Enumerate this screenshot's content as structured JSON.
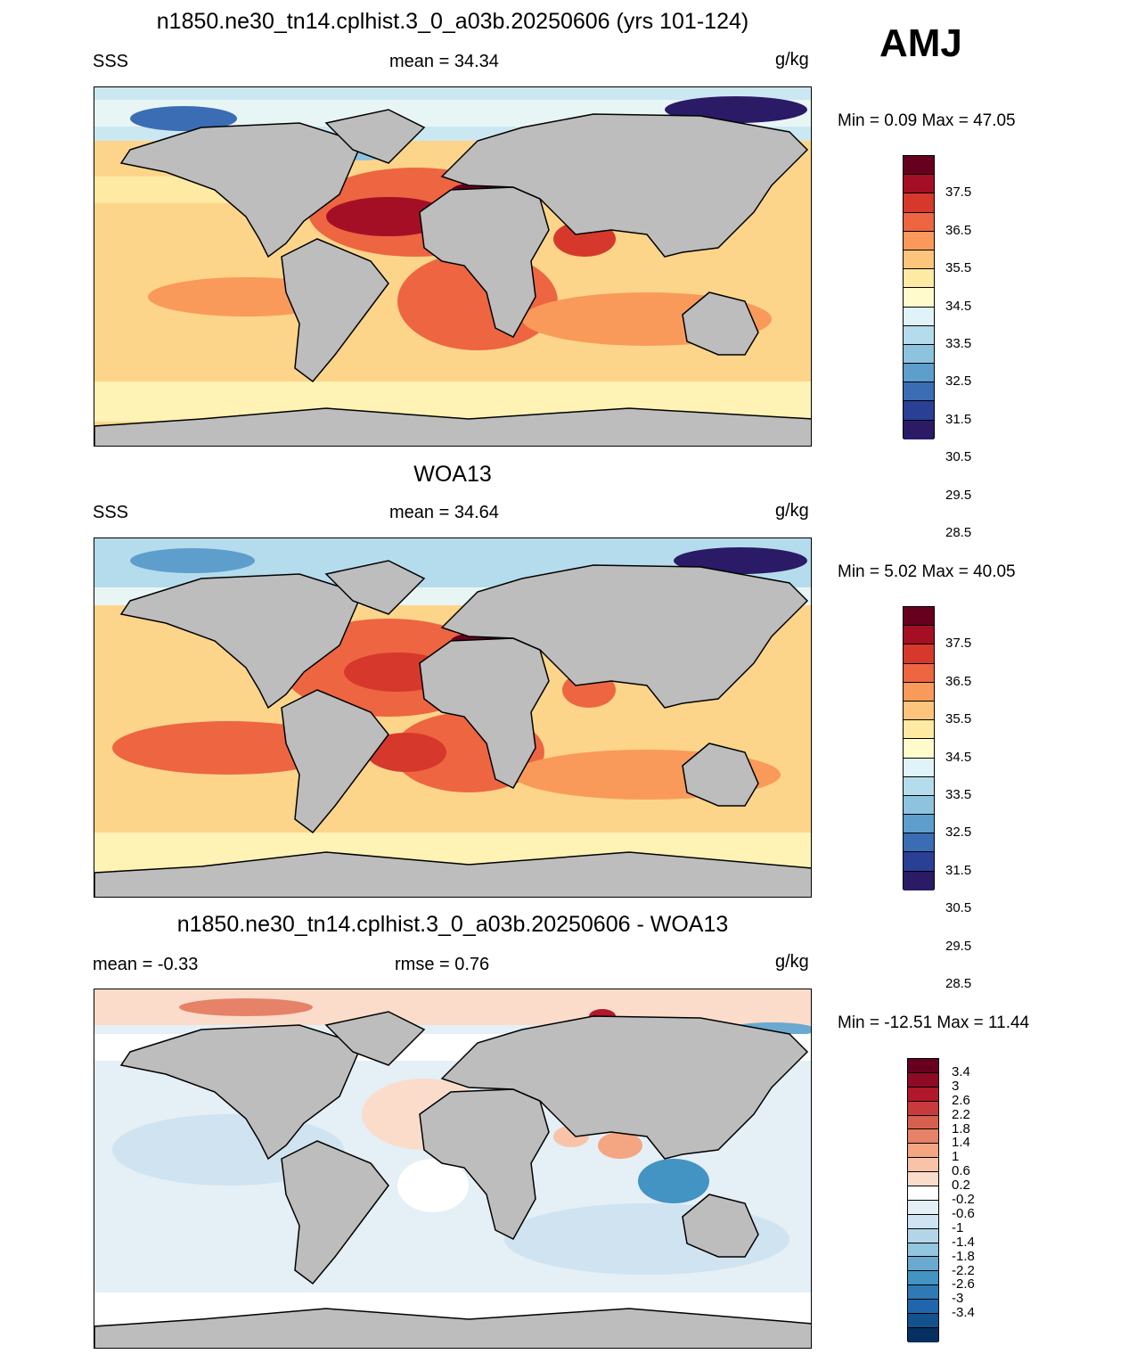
{
  "season": "AMJ",
  "units": "g/kg",
  "land_color": "#bdbdbd",
  "panels": [
    {
      "title": "n1850.ne30_tn14.cplhist.3_0_a03b.20250606 (yrs 101-124)",
      "left_label": "SSS",
      "center_label": "mean =  34.34",
      "units": "g/kg",
      "minmax": "Min =   0.09 Max =  47.05"
    },
    {
      "title": "WOA13",
      "left_label": "SSS",
      "center_label": "mean =  34.64",
      "units": "g/kg",
      "minmax": "Min =   5.02 Max =  40.05"
    },
    {
      "title": "n1850.ne30_tn14.cplhist.3_0_a03b.20250606 - WOA13",
      "left_label": "mean =  -0.33",
      "center_label": "rmse =   0.76",
      "units": "g/kg",
      "minmax": "Min = -12.51 Max =  11.44"
    }
  ],
  "sss_colorbar": {
    "labels": [
      "37.5",
      "36.5",
      "35.5",
      "34.5",
      "33.5",
      "32.5",
      "31.5",
      "30.5",
      "29.5",
      "28.5"
    ],
    "colors": [
      "#67001f",
      "#a50f26",
      "#d6392b",
      "#ee6541",
      "#f99a5a",
      "#fdc57c",
      "#feeaa2",
      "#fffbcd",
      "#e0f3f8",
      "#b5dcec",
      "#8ec3de",
      "#5e9ecd",
      "#3a6db4",
      "#2a3f96",
      "#2b1a66"
    ]
  },
  "diff_colorbar": {
    "labels": [
      "3.4",
      "3",
      "2.6",
      "2.2",
      "1.8",
      "1.4",
      "1",
      "0.6",
      "0.2",
      "-0.2",
      "-0.6",
      "-1",
      "-1.4",
      "-1.8",
      "-2.2",
      "-2.6",
      "-3",
      "-3.4"
    ],
    "colors": [
      "#67001f",
      "#8e0b25",
      "#b2182b",
      "#c93a3d",
      "#d6604d",
      "#e58267",
      "#f4a582",
      "#f8c3a8",
      "#fbdccb",
      "#ffffff",
      "#e4eff6",
      "#cfe3f0",
      "#b4d5e8",
      "#92c5de",
      "#6aa9d0",
      "#4393c3",
      "#2f79b5",
      "#2166ac",
      "#13528f",
      "#053061"
    ]
  }
}
